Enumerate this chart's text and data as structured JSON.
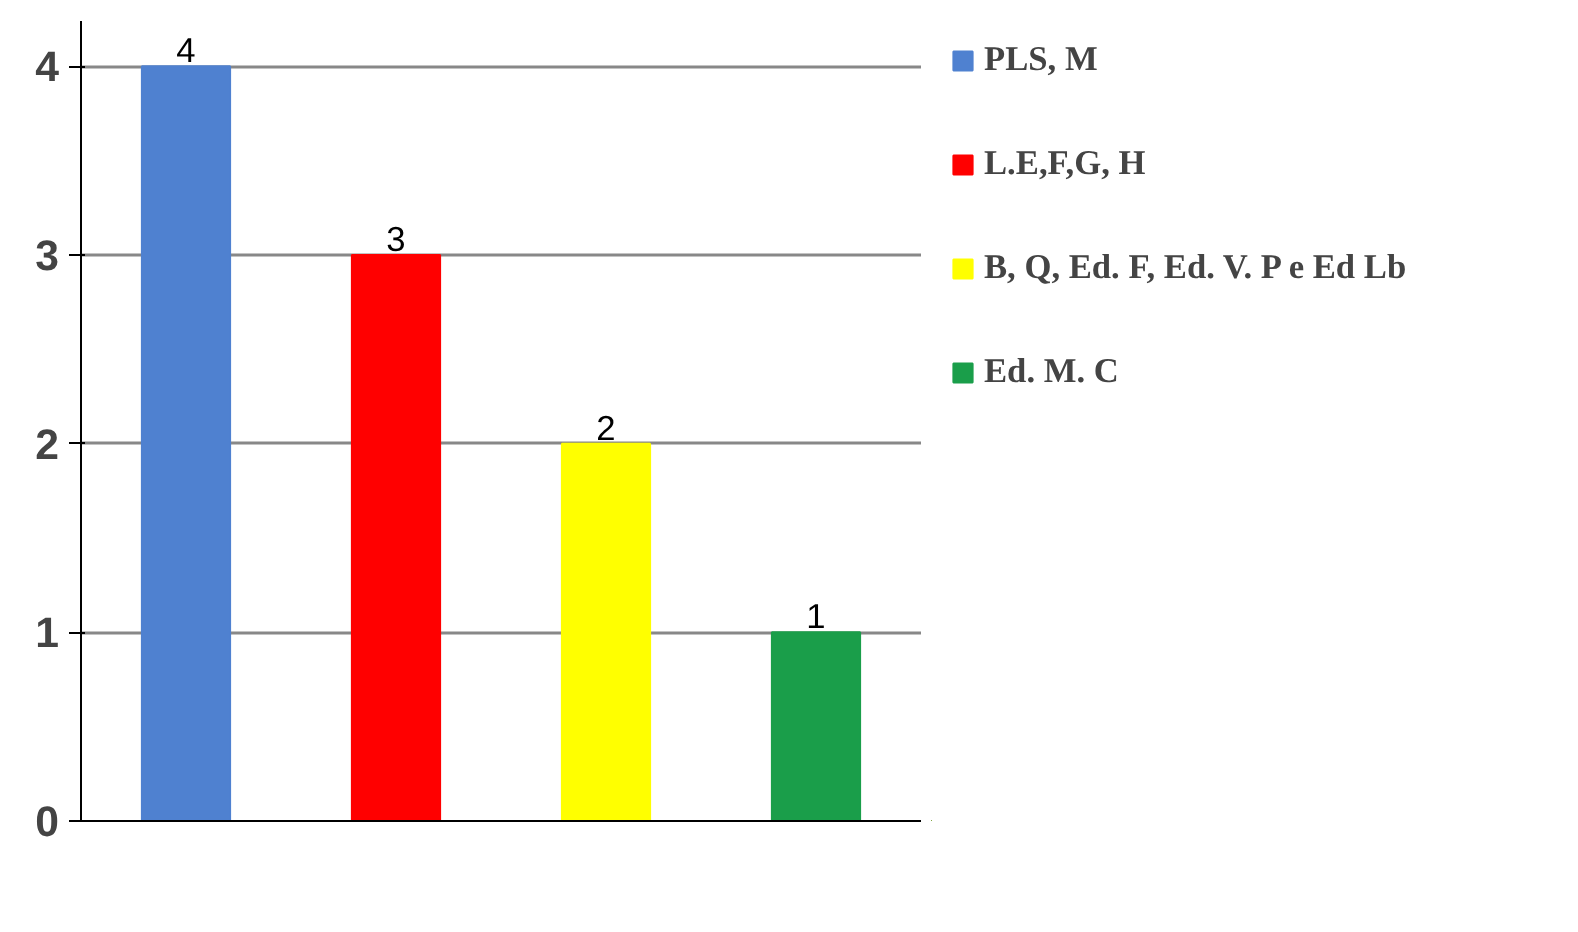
{
  "chart_data": {
    "type": "bar",
    "categories": [
      null,
      null,
      null,
      null
    ],
    "series": [
      {
        "name": "PLS, M",
        "color": "#4f81d0",
        "values": [
          4,
          null,
          null,
          null
        ]
      },
      {
        "name": "L.E,F,G, H",
        "color": "#ff0000",
        "values": [
          null,
          3,
          null,
          null
        ]
      },
      {
        "name": "B, Q, Ed. F, Ed. V. P e Ed Lb",
        "color": "#ffff00",
        "values": [
          null,
          null,
          2,
          null
        ]
      },
      {
        "name": "Ed. M. C",
        "color": "#1a9e4a",
        "values": [
          null,
          null,
          null,
          1
        ]
      }
    ],
    "ylim": [
      0,
      4
    ],
    "yticks": [
      0,
      1,
      2,
      3,
      4
    ],
    "grid": "y",
    "legend": "right",
    "data_labels": true
  }
}
